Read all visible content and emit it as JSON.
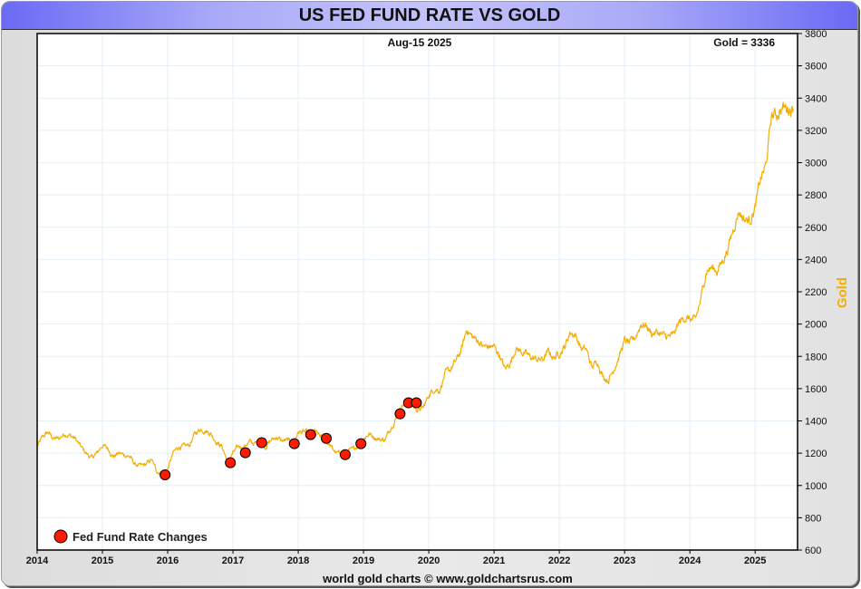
{
  "title": "US FED FUND RATE VS GOLD",
  "header": {
    "date_label": "Aug-15  2025",
    "value_label": "Gold = 3336"
  },
  "credit": "world gold charts © www.goldchartsrus.com",
  "legend": {
    "label": "Fed Fund Rate Changes"
  },
  "colors": {
    "gold_line": "#f5ad00",
    "marker_fill": "#ff1a00",
    "marker_stroke": "#000000",
    "grid": "#e4eff6",
    "ylabel": "#f5ad00"
  },
  "chart_data": {
    "type": "line",
    "title": "US FED FUND RATE VS GOLD",
    "xlabel": "",
    "ylabel": "Gold",
    "y_axis_side": "right",
    "xlim": [
      2014.0,
      2025.65
    ],
    "ylim": [
      600,
      3800
    ],
    "grid": true,
    "x_ticks": [
      2014,
      2015,
      2016,
      2017,
      2018,
      2019,
      2020,
      2021,
      2022,
      2023,
      2024,
      2025
    ],
    "x_tick_labels": [
      "2014",
      "2015",
      "2016",
      "2017",
      "2018",
      "2019",
      "2020",
      "2021",
      "2022",
      "2023",
      "2024",
      "2025"
    ],
    "y_ticks": [
      600,
      800,
      1000,
      1200,
      1400,
      1600,
      1800,
      2000,
      2200,
      2400,
      2600,
      2800,
      3000,
      3200,
      3400,
      3600,
      3800
    ],
    "y_tick_labels": [
      "600",
      "800",
      "1000",
      "1200",
      "1400",
      "1600",
      "1800",
      "2000",
      "2200",
      "2400",
      "2600",
      "2800",
      "3000",
      "3200",
      "3400",
      "3600",
      "3800"
    ],
    "legend_position": "bottom-left",
    "series": [
      {
        "name": "Gold",
        "type": "line",
        "x_start": 2014.0,
        "x_step": 0.083333,
        "values": [
          1240,
          1300,
          1330,
          1290,
          1290,
          1320,
          1310,
          1290,
          1240,
          1200,
          1170,
          1200,
          1250,
          1230,
          1180,
          1200,
          1190,
          1180,
          1130,
          1120,
          1130,
          1160,
          1090,
          1070,
          1100,
          1200,
          1240,
          1240,
          1250,
          1320,
          1350,
          1340,
          1320,
          1270,
          1240,
          1150,
          1200,
          1240,
          1240,
          1270,
          1260,
          1260,
          1240,
          1280,
          1300,
          1275,
          1280,
          1260,
          1330,
          1330,
          1325,
          1335,
          1305,
          1280,
          1240,
          1200,
          1195,
          1215,
          1220,
          1250,
          1290,
          1320,
          1300,
          1285,
          1285,
          1360,
          1415,
          1500,
          1510,
          1495,
          1470,
          1480,
          1560,
          1600,
          1590,
          1690,
          1720,
          1770,
          1840,
          1970,
          1920,
          1900,
          1860,
          1860,
          1860,
          1810,
          1720,
          1760,
          1850,
          1830,
          1810,
          1790,
          1780,
          1780,
          1830,
          1790,
          1820,
          1860,
          1950,
          1930,
          1850,
          1840,
          1730,
          1770,
          1680,
          1650,
          1720,
          1800,
          1900,
          1880,
          1920,
          2000,
          1990,
          1940,
          1950,
          1930,
          1920,
          1930,
          2010,
          2040,
          2030,
          2020,
          2150,
          2330,
          2350,
          2330,
          2390,
          2470,
          2590,
          2700,
          2650,
          2640,
          2720,
          2900,
          2980,
          3290,
          3300,
          3340,
          3340,
          3336
        ]
      },
      {
        "name": "Fed Fund Rate Changes",
        "type": "scatter",
        "points": [
          {
            "x": 2015.96,
            "y": 1066
          },
          {
            "x": 2016.96,
            "y": 1141
          },
          {
            "x": 2017.19,
            "y": 1203
          },
          {
            "x": 2017.44,
            "y": 1265
          },
          {
            "x": 2017.94,
            "y": 1259
          },
          {
            "x": 2018.19,
            "y": 1315
          },
          {
            "x": 2018.43,
            "y": 1292
          },
          {
            "x": 2018.72,
            "y": 1191
          },
          {
            "x": 2018.96,
            "y": 1259
          },
          {
            "x": 2019.56,
            "y": 1444
          },
          {
            "x": 2019.69,
            "y": 1512
          },
          {
            "x": 2019.81,
            "y": 1512
          }
        ]
      }
    ],
    "annotations": [
      "Aug-15  2025",
      "Gold = 3336"
    ]
  }
}
